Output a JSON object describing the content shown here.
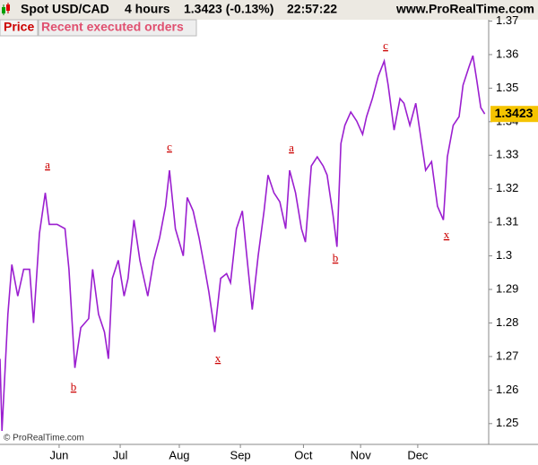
{
  "header": {
    "symbol": "Spot USD/CAD",
    "timeframe": "4 hours",
    "quote": "1.3423 (-0.13%)",
    "time": "22:57:22",
    "site": "www.ProRealTime.com"
  },
  "chart_data": {
    "type": "line",
    "tabs": [
      "Price",
      "Recent executed orders"
    ],
    "copyright": "© ProRealTime.com",
    "x": [
      0,
      1,
      4,
      6,
      9,
      12,
      15,
      17,
      20,
      23,
      25,
      29,
      33,
      35,
      38,
      41,
      45,
      47,
      50,
      53,
      55,
      57,
      60,
      63,
      65,
      68,
      71,
      75,
      78,
      81,
      84,
      86,
      89,
      93,
      95,
      98,
      101,
      104,
      106,
      109,
      112,
      115,
      117,
      120,
      123,
      125,
      128,
      131,
      134,
      136,
      139,
      142,
      145,
      147,
      150,
      153,
      155,
      158,
      161,
      164,
      166,
      169,
      171,
      173,
      175,
      178,
      181,
      184,
      186,
      189,
      192,
      195,
      197,
      200,
      203,
      205,
      208,
      211,
      214,
      216,
      219,
      222,
      225,
      227,
      230,
      233,
      235,
      238,
      240,
      242,
      244,
      246
    ],
    "series": [
      {
        "color": "#9b1fd0",
        "values": [
          1.2693,
          1.2478,
          1.2826,
          1.2974,
          1.288,
          1.296,
          1.296,
          1.28,
          1.3067,
          1.3188,
          1.3094,
          1.3094,
          1.3081,
          1.296,
          1.2666,
          1.2786,
          1.2813,
          1.296,
          1.2826,
          1.2773,
          1.2693,
          1.2933,
          1.2987,
          1.288,
          1.2933,
          1.3107,
          1.2987,
          1.288,
          1.2987,
          1.3054,
          1.3148,
          1.3255,
          1.3081,
          1.3,
          1.3174,
          1.3134,
          1.3054,
          1.296,
          1.2893,
          1.2773,
          1.2933,
          1.2947,
          1.292,
          1.3081,
          1.3134,
          1.3014,
          1.284,
          1.3,
          1.3134,
          1.3241,
          1.3188,
          1.3161,
          1.3081,
          1.3255,
          1.3188,
          1.3081,
          1.3041,
          1.3268,
          1.3295,
          1.3268,
          1.3241,
          1.3121,
          1.3027,
          1.3335,
          1.3389,
          1.3429,
          1.3402,
          1.3362,
          1.3415,
          1.3469,
          1.3536,
          1.3581,
          1.3509,
          1.3375,
          1.3469,
          1.3455,
          1.3389,
          1.3455,
          1.3335,
          1.3255,
          1.3281,
          1.3148,
          1.3107,
          1.3295,
          1.3389,
          1.3415,
          1.3509,
          1.3563,
          1.3597,
          1.3522,
          1.3442,
          1.3423
        ]
      }
    ],
    "xlim": [
      0,
      248
    ],
    "xticks": [
      {
        "value": 30,
        "label": "Jun"
      },
      {
        "value": 61,
        "label": "Jul"
      },
      {
        "value": 91,
        "label": "Aug"
      },
      {
        "value": 122,
        "label": "Sep"
      },
      {
        "value": 154,
        "label": "Oct"
      },
      {
        "value": 183,
        "label": "Nov"
      },
      {
        "value": 212,
        "label": "Dec"
      }
    ],
    "ylim": [
      1.2438,
      1.3704
    ],
    "yticks": [
      1.25,
      1.26,
      1.27,
      1.28,
      1.29,
      1.3,
      1.31,
      1.32,
      1.33,
      1.34,
      1.35,
      1.36,
      1.37
    ],
    "annotations": [
      "a",
      "b",
      "c",
      "x",
      "a",
      "b",
      "c",
      "x"
    ]
  }
}
